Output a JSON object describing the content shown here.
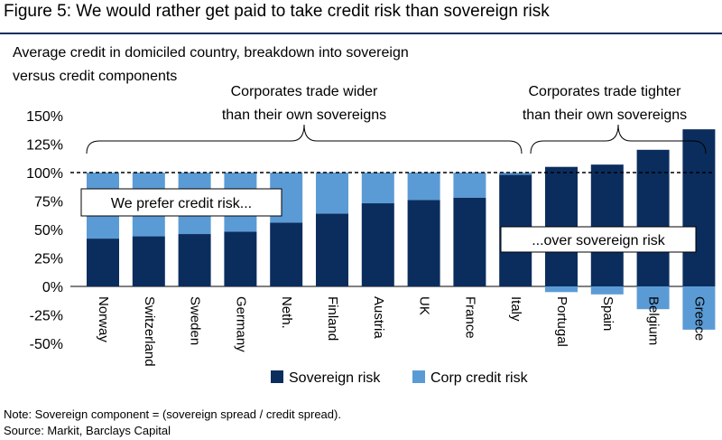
{
  "figure": {
    "title": "Figure 5: We would rather get paid to take credit risk than sovereign risk",
    "subtitle_line1": "Average credit in domiciled country, breakdown into sovereign",
    "subtitle_line2": "versus credit components",
    "note": "Note: Sovereign component = (sovereign spread / credit spread).",
    "source": "Source: Markit, Barclays Capital"
  },
  "chart_data": {
    "type": "bar",
    "stacked": true,
    "title": "Average credit in domiciled country, breakdown into sovereign versus credit components",
    "xlabel": "",
    "ylabel": "",
    "ylim": [
      -50,
      150
    ],
    "yticks": [
      -50,
      -25,
      0,
      25,
      50,
      75,
      100,
      125,
      150
    ],
    "ytick_labels": [
      "-50%",
      "-25%",
      "0%",
      "25%",
      "50%",
      "75%",
      "100%",
      "125%",
      "150%"
    ],
    "categories": [
      "Norway",
      "Switzerland",
      "Sweden",
      "Germany",
      "Neth.",
      "Finland",
      "Austria",
      "UK",
      "France",
      "Italy",
      "Portugal",
      "Spain",
      "Belgium",
      "Greece"
    ],
    "series": [
      {
        "name": "Sovereign risk",
        "color": "#0b2d5e",
        "values": [
          42,
          44,
          46,
          48,
          56,
          64,
          73,
          76,
          78,
          98,
          105,
          107,
          120,
          138
        ]
      },
      {
        "name": "Corp credit risk",
        "color": "#5b9bd5",
        "values": [
          58,
          56,
          54,
          52,
          44,
          36,
          27,
          24,
          22,
          2,
          -5,
          -7,
          -20,
          -38
        ]
      }
    ],
    "reference_line": {
      "value": 100,
      "style": "dashed"
    },
    "annotations": [
      {
        "text_line1": "Corporates trade wider",
        "text_line2": "than their own sovereigns",
        "span": [
          "Norway",
          "Italy"
        ]
      },
      {
        "text_line1": "Corporates trade tighter",
        "text_line2": "than their own sovereigns",
        "span": [
          "Portugal",
          "Greece"
        ]
      }
    ],
    "callouts": [
      "We prefer credit risk...",
      "...over sovereign risk"
    ],
    "legend_position": "bottom-center"
  }
}
